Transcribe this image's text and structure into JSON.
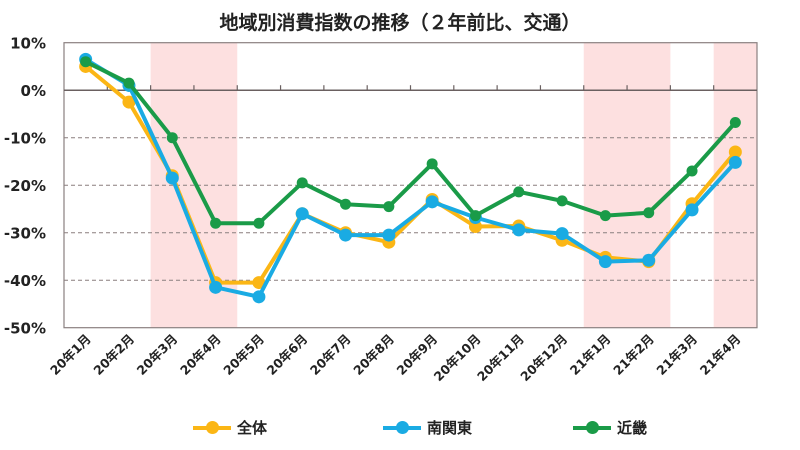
{
  "chart_data": {
    "type": "line",
    "title": "地域別消費指数の推移（２年前比、交通）",
    "xlabel": "",
    "ylabel": "",
    "categories": [
      "20年1月",
      "20年2月",
      "20年3月",
      "20年4月",
      "20年5月",
      "20年6月",
      "20年7月",
      "20年8月",
      "20年9月",
      "20年10月",
      "20年11月",
      "20年12月",
      "21年1月",
      "21年2月",
      "21年3月",
      "21年4月"
    ],
    "ylim": [
      -50,
      10
    ],
    "yticks": [
      10,
      0,
      -10,
      -20,
      -30,
      -40,
      -50
    ],
    "ytick_labels": [
      "10%",
      "0%",
      "-10%",
      "-20%",
      "-30%",
      "-40%",
      "-50%"
    ],
    "grid": "dashed horizontal",
    "legend_position": "bottom",
    "shaded_periods": [
      [
        "20年3月",
        "20年4月"
      ],
      [
        "21年1月",
        "21年2月"
      ],
      [
        "21年4月",
        "21年4月"
      ]
    ],
    "shade_color": "#fde0e0",
    "series": [
      {
        "name": "全体",
        "color": "#fbb615",
        "values": [
          5,
          -2.5,
          -18,
          -40.5,
          -40.5,
          -26,
          -30,
          -32,
          -23,
          -28.7,
          -28.6,
          -31.6,
          -35.2,
          -36.1,
          -23.9,
          -13
        ]
      },
      {
        "name": "南関東",
        "color": "#1aabe3",
        "values": [
          6.5,
          1,
          -18.5,
          -41.5,
          -43.5,
          -26,
          -30.5,
          -30.5,
          -23.5,
          -26.8,
          -29.4,
          -30.2,
          -36.1,
          -35.8,
          -25.2,
          -15.2
        ]
      },
      {
        "name": "近畿",
        "color": "#1a9b48",
        "values": [
          6,
          1.5,
          -10,
          -28,
          -28,
          -19.5,
          -24,
          -24.5,
          -15.5,
          -26.4,
          -21.4,
          -23.3,
          -26.4,
          -25.8,
          -17,
          -6.8
        ]
      }
    ]
  }
}
